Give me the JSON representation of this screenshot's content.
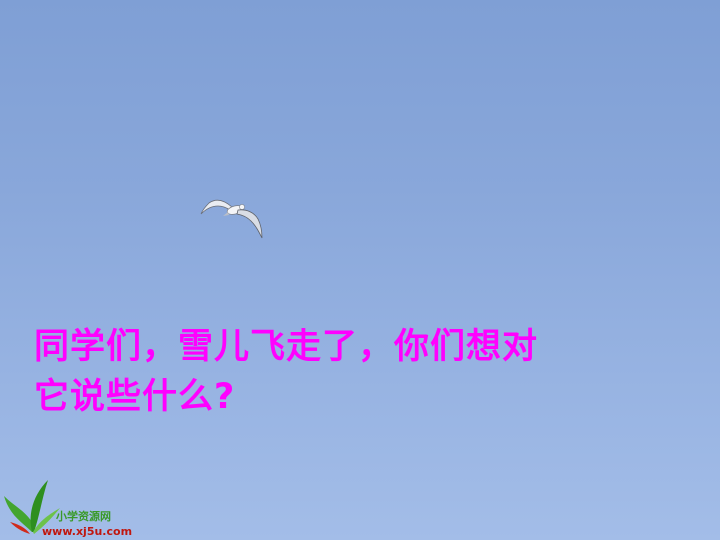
{
  "slide": {
    "caption_line1": "同学们，雪儿飞走了，你们想对",
    "caption_line2": "它说些什么?",
    "caption_color": "#ff00ff",
    "background_color": "#8aa8db"
  },
  "logo": {
    "icon": "leaf-logo-icon",
    "name": "小学资源网",
    "url": "www.xj5u.com"
  }
}
